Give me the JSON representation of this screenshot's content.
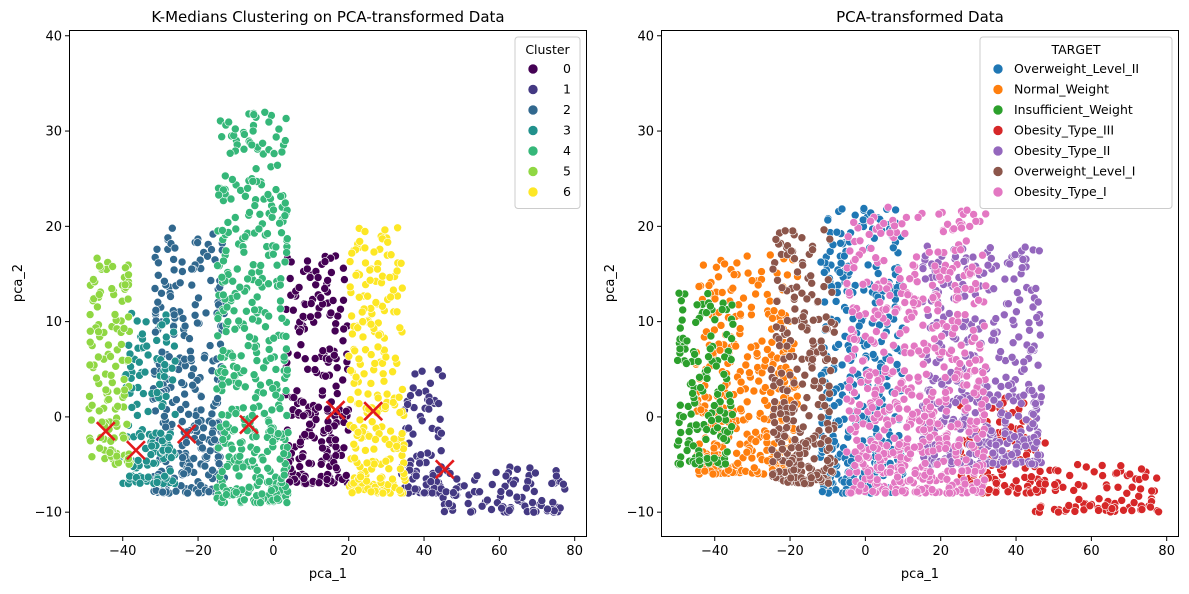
{
  "chart_data": [
    {
      "type": "scatter",
      "title": "K-Medians Clustering on PCA-transformed Data",
      "xlabel": "pca_1",
      "ylabel": "pca_2",
      "xlim": [
        -54,
        83
      ],
      "ylim": [
        -12.5,
        40.5
      ],
      "xticks": [
        -40,
        -20,
        0,
        20,
        40,
        60,
        80
      ],
      "yticks": [
        -10,
        0,
        10,
        20,
        30,
        40
      ],
      "legend": {
        "title": "Cluster",
        "position": "top-right"
      },
      "series": [
        {
          "name": "0",
          "color": "#440154",
          "regions": [
            [
              3,
              20,
              -7,
              17
            ]
          ]
        },
        {
          "name": "1",
          "color": "#443983",
          "regions": [
            [
              34,
              45,
              -8,
              5
            ],
            [
              45,
              78,
              -10,
              -5
            ]
          ]
        },
        {
          "name": "2",
          "color": "#31688e",
          "regions": [
            [
              -32,
              -13,
              -8,
              20
            ]
          ]
        },
        {
          "name": "3",
          "color": "#21918c",
          "regions": [
            [
              -40,
              -26,
              -7,
              11
            ]
          ]
        },
        {
          "name": "4",
          "color": "#35b779",
          "regions": [
            [
              -15,
              4,
              -9,
              32
            ]
          ]
        },
        {
          "name": "5",
          "color": "#90d743",
          "regions": [
            [
              -49,
              -38,
              -5,
              17
            ]
          ]
        },
        {
          "name": "6",
          "color": "#fde725",
          "regions": [
            [
              20,
              35,
              -8,
              20
            ]
          ]
        }
      ],
      "centroids": {
        "color": "#e31a1c",
        "x": [
          -44.5,
          -36.5,
          -23,
          -6.5,
          16.5,
          26.5,
          45.5
        ],
        "y": [
          -1.5,
          -3.5,
          -1.8,
          -0.8,
          0.7,
          0.6,
          -5.5
        ]
      }
    },
    {
      "type": "scatter",
      "title": "PCA-transformed Data",
      "xlabel": "pca_1",
      "ylabel": "pca_2",
      "xlim": [
        -54,
        83
      ],
      "ylim": [
        -12.5,
        40.5
      ],
      "xticks": [
        -40,
        -20,
        0,
        20,
        40,
        60,
        80
      ],
      "yticks": [
        -10,
        0,
        10,
        20,
        30,
        40
      ],
      "legend": {
        "title": "TARGET",
        "position": "top-right"
      },
      "series": [
        {
          "name": "Overweight_Level_II",
          "color": "#1f77b4",
          "regions": [
            [
              -12,
              10,
              -8,
              22
            ]
          ]
        },
        {
          "name": "Normal_Weight",
          "color": "#ff7f0e",
          "regions": [
            [
              -45,
              -18,
              -6,
              17
            ]
          ]
        },
        {
          "name": "Insufficient_Weight",
          "color": "#2ca02c",
          "regions": [
            [
              -50,
              -35,
              -5,
              13
            ]
          ]
        },
        {
          "name": "Obesity_Type_III",
          "color": "#d62728",
          "regions": [
            [
              25,
              48,
              -8,
              2
            ],
            [
              45,
              78,
              -10,
              -5
            ]
          ]
        },
        {
          "name": "Obesity_Type_II",
          "color": "#9467bd",
          "regions": [
            [
              15,
              47,
              -5,
              18
            ]
          ]
        },
        {
          "name": "Overweight_Level_I",
          "color": "#8c564b",
          "regions": [
            [
              -25,
              -8,
              -7,
              20
            ]
          ]
        },
        {
          "name": "Obesity_Type_I",
          "color": "#e377c2",
          "regions": [
            [
              -5,
              32,
              -8,
              22
            ]
          ]
        }
      ]
    }
  ]
}
